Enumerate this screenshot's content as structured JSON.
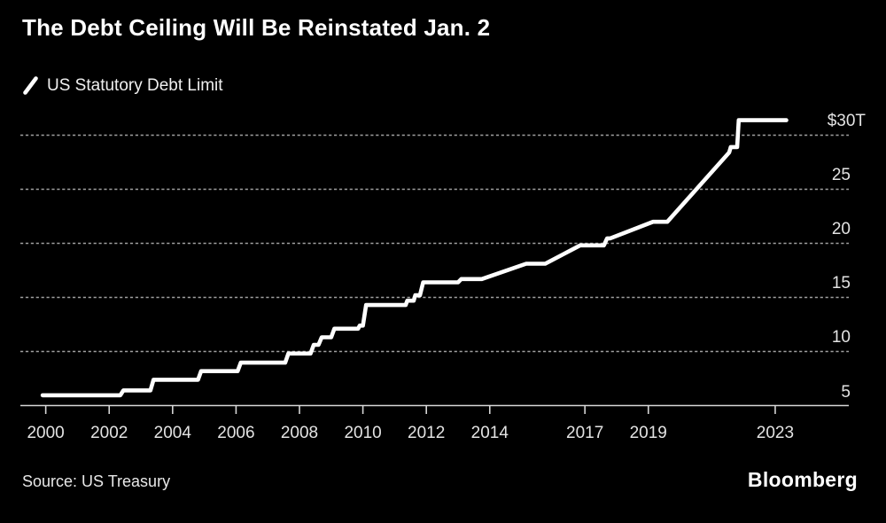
{
  "footer": {
    "brand": "Bloomberg"
  },
  "chart_data": {
    "type": "line",
    "title": "The Debt Ceiling Will Be Reinstated Jan. 2",
    "source": "Source: US Treasury",
    "legend_position": "top-left",
    "grid": "dotted horizontal",
    "line_color": "#ffffff",
    "background_color": "#000000",
    "x_domain": [
      1999.2,
      2025.46
    ],
    "y_domain": [
      5,
      40.86
    ],
    "x_ticks": [
      {
        "year": 2000,
        "label": "2000"
      },
      {
        "year": 2002,
        "label": "2002"
      },
      {
        "year": 2004,
        "label": "2004"
      },
      {
        "year": 2006,
        "label": "2006"
      },
      {
        "year": 2008,
        "label": "2008"
      },
      {
        "year": 2010,
        "label": "2010"
      },
      {
        "year": 2012,
        "label": "2012"
      },
      {
        "year": 2014,
        "label": "2014"
      },
      {
        "year": 2017,
        "label": "2017"
      },
      {
        "year": 2019,
        "label": "2019"
      },
      {
        "year": 2023,
        "label": "2023"
      }
    ],
    "y_ticks": [
      {
        "value": 5,
        "label": "5"
      },
      {
        "value": 10,
        "label": "10"
      },
      {
        "value": 15,
        "label": "15"
      },
      {
        "value": 20,
        "label": "20"
      },
      {
        "value": 25,
        "label": "25"
      },
      {
        "value": 30,
        "label": "$30T"
      }
    ],
    "series": [
      {
        "name": "US Statutory Debt Limit",
        "unit_hint": "trillions of dollars (T)",
        "points": [
          [
            1999.9,
            5.95
          ],
          [
            2002.35,
            5.95
          ],
          [
            2002.45,
            6.4
          ],
          [
            2003.3,
            6.4
          ],
          [
            2003.4,
            7.384
          ],
          [
            2004.8,
            7.384
          ],
          [
            2004.9,
            8.184
          ],
          [
            2006.05,
            8.184
          ],
          [
            2006.15,
            8.965
          ],
          [
            2007.55,
            8.965
          ],
          [
            2007.65,
            9.815
          ],
          [
            2008.35,
            9.815
          ],
          [
            2008.45,
            10.615
          ],
          [
            2008.6,
            10.615
          ],
          [
            2008.7,
            11.315
          ],
          [
            2009.0,
            11.315
          ],
          [
            2009.1,
            12.104
          ],
          [
            2009.85,
            12.104
          ],
          [
            2009.9,
            12.394
          ],
          [
            2010.0,
            12.394
          ],
          [
            2010.1,
            14.294
          ],
          [
            2011.35,
            14.294
          ],
          [
            2011.4,
            14.694
          ],
          [
            2011.6,
            14.694
          ],
          [
            2011.65,
            15.194
          ],
          [
            2011.8,
            15.194
          ],
          [
            2011.9,
            16.394
          ],
          [
            2013.0,
            16.394
          ],
          [
            2013.1,
            16.699
          ],
          [
            2013.75,
            16.699
          ],
          [
            2015.15,
            18.113
          ],
          [
            2015.75,
            18.113
          ],
          [
            2016.85,
            19.809
          ],
          [
            2017.6,
            19.809
          ],
          [
            2017.7,
            20.456
          ],
          [
            2017.8,
            20.456
          ],
          [
            2019.15,
            21.988
          ],
          [
            2019.6,
            21.988
          ],
          [
            2021.55,
            28.4
          ],
          [
            2021.6,
            28.9
          ],
          [
            2021.8,
            28.9
          ],
          [
            2021.85,
            31.381
          ],
          [
            2023.35,
            31.381
          ]
        ]
      }
    ]
  }
}
